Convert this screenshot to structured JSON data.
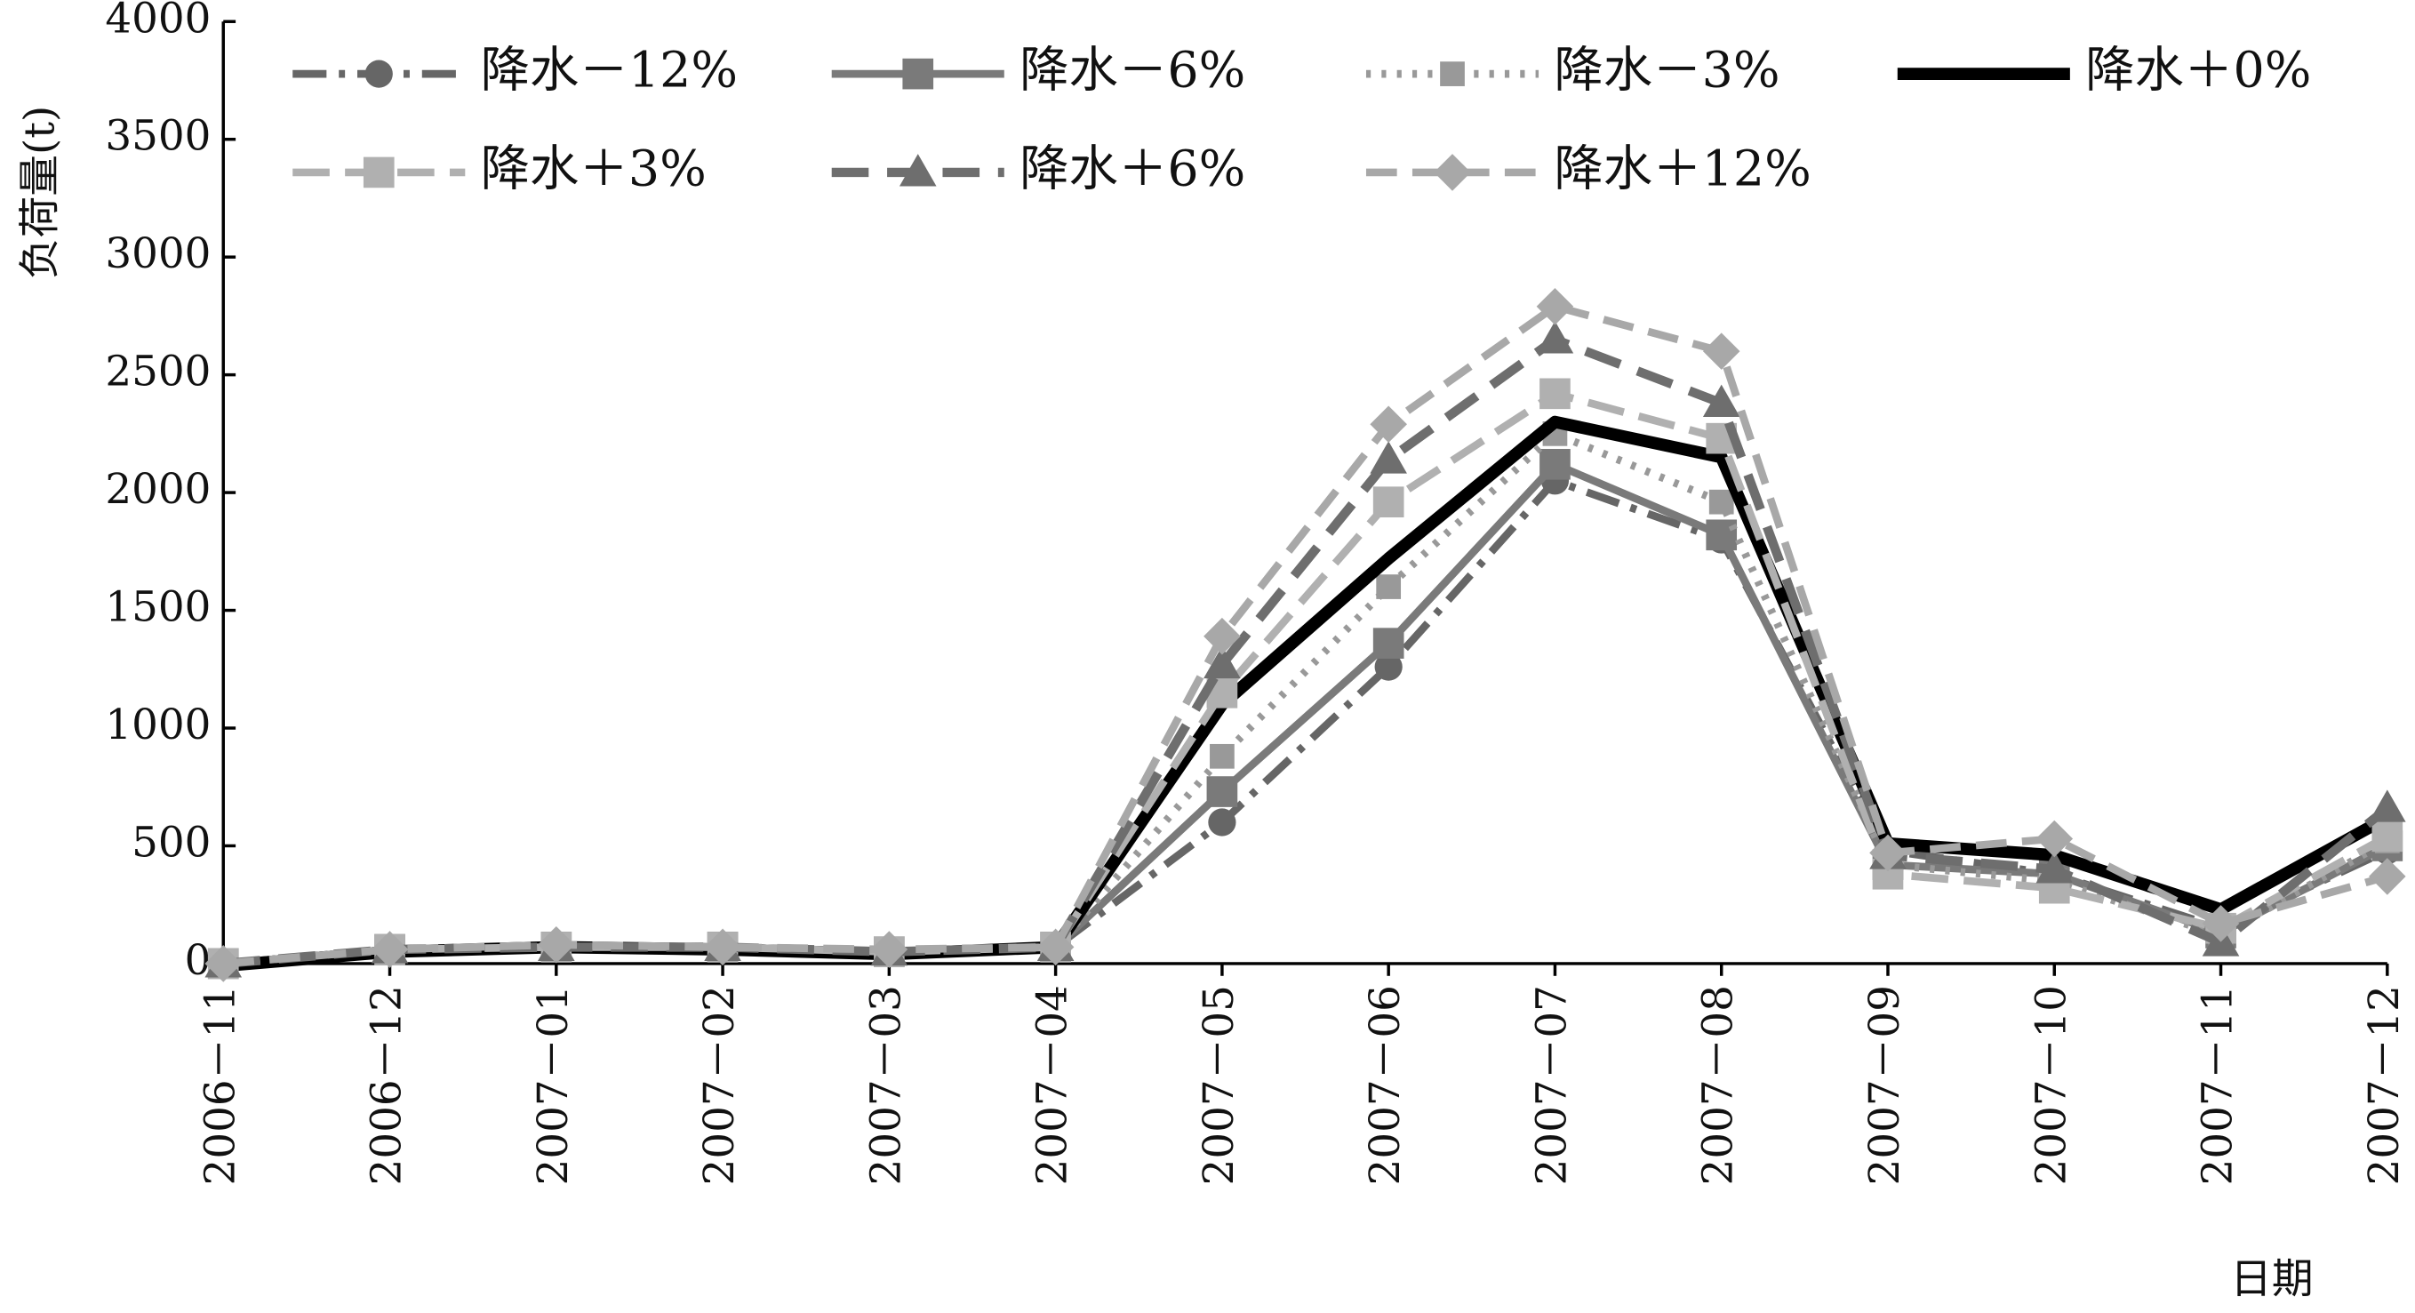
{
  "chart_data": {
    "type": "line",
    "y_label": "负荷量(t)",
    "x_label": "日期",
    "categories": [
      "2006－11",
      "2006－12",
      "2007－01",
      "2007－02",
      "2007－03",
      "2007－04",
      "2007－05",
      "2007－06",
      "2007－07",
      "2007－08",
      "2007－09",
      "2007－10",
      "2007－11",
      "2007－12"
    ],
    "ylim": [
      0,
      4000
    ],
    "yticks": [
      0,
      500,
      1000,
      1500,
      2000,
      2500,
      3000,
      3500,
      4000
    ],
    "series": [
      {
        "name": "降水－12%",
        "color": "#666666",
        "dash": "22 8 4 8",
        "width": 5,
        "marker": "circle",
        "values": [
          0,
          60,
          70,
          70,
          50,
          70,
          600,
          1260,
          2050,
          1800,
          480,
          380,
          150,
          480
        ]
      },
      {
        "name": "降水－6%",
        "color": "#7a7a7a",
        "dash": "none",
        "width": 5,
        "marker": "square",
        "values": [
          0,
          60,
          70,
          70,
          50,
          70,
          730,
          1360,
          2120,
          1820,
          420,
          380,
          130,
          500
        ]
      },
      {
        "name": "降水－3%",
        "color": "#999999",
        "dash": "3 7",
        "width": 5,
        "marker": "square-small",
        "values": [
          0,
          60,
          70,
          70,
          50,
          70,
          880,
          1600,
          2250,
          1960,
          420,
          350,
          120,
          520
        ]
      },
      {
        "name": "降水＋0%",
        "color": "#000000",
        "dash": "none",
        "width": 8,
        "marker": "none",
        "values": [
          -10,
          50,
          70,
          60,
          40,
          70,
          1100,
          1720,
          2300,
          2150,
          510,
          460,
          230,
          620
        ]
      },
      {
        "name": "降水＋3%",
        "color": "#b0b0b0",
        "dash": "24 10",
        "width": 5,
        "marker": "square",
        "values": [
          0,
          60,
          70,
          70,
          50,
          70,
          1150,
          1960,
          2420,
          2230,
          380,
          320,
          150,
          540
        ]
      },
      {
        "name": "降水＋6%",
        "color": "#6e6e6e",
        "dash": "24 12",
        "width": 6,
        "marker": "triangle",
        "values": [
          0,
          60,
          70,
          70,
          50,
          70,
          1270,
          2140,
          2650,
          2380,
          460,
          400,
          90,
          660
        ]
      },
      {
        "name": "降水＋12%",
        "color": "#a8a8a8",
        "dash": "20 10",
        "width": 5,
        "marker": "diamond",
        "values": [
          0,
          60,
          80,
          70,
          60,
          70,
          1390,
          2290,
          2790,
          2600,
          470,
          530,
          170,
          370
        ]
      }
    ]
  }
}
